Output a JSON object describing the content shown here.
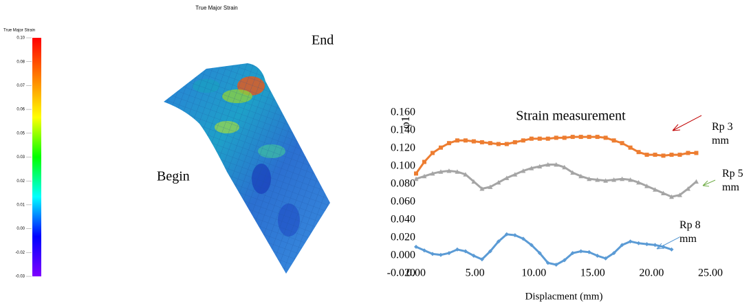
{
  "figure_title": "True Major Strain",
  "labels": {
    "begin": "Begin",
    "end": "End"
  },
  "chart_data": [
    {
      "type": "colorbar",
      "title": "True Major Strain",
      "categories": [
        "0.10",
        "0.08",
        "0.07",
        "0.06",
        "0.05",
        "0.03",
        "0.02",
        "0.01",
        "0.00",
        "-0.02",
        "-0.03"
      ],
      "colors": [
        "#ff0000",
        "#ff8000",
        "#ffff00",
        "#00ff00",
        "#00ffff",
        "#0000ff",
        "#8000ff"
      ]
    },
    {
      "type": "line",
      "title": "Strain measurement",
      "x_label": "Displacment (mm)",
      "y_label": "φ1",
      "xlim": [
        0,
        25
      ],
      "xticks": [
        {
          "value": 0,
          "label": "0.00"
        },
        {
          "value": 5,
          "label": "5.00"
        },
        {
          "value": 10,
          "label": "10.00"
        },
        {
          "value": 15,
          "label": "15.00"
        },
        {
          "value": 20,
          "label": "20.00"
        },
        {
          "value": 25,
          "label": "25.00"
        }
      ],
      "ylim": [
        -0.02,
        0.16
      ],
      "yticks": [
        {
          "value": -0.02,
          "label": "-0.020"
        },
        {
          "value": 0,
          "label": "0.000"
        },
        {
          "value": 0.02,
          "label": "0.020"
        },
        {
          "value": 0.04,
          "label": "0.040"
        },
        {
          "value": 0.06,
          "label": "0.060"
        },
        {
          "value": 0.08,
          "label": "0.080"
        },
        {
          "value": 0.1,
          "label": "0.100"
        },
        {
          "value": 0.12,
          "label": "0.120"
        },
        {
          "value": 0.14,
          "label": "0.140"
        },
        {
          "value": 0.16,
          "label": "0.160"
        }
      ],
      "series": [
        {
          "name": "Rp 3 mm",
          "color": "#ed7d31",
          "marker": "square",
          "x": [
            0,
            0.7,
            1.4,
            2.1,
            2.8,
            3.5,
            4.2,
            4.9,
            5.6,
            6.3,
            7.0,
            7.7,
            8.4,
            9.1,
            9.8,
            10.5,
            11.2,
            11.9,
            12.6,
            13.3,
            14.0,
            14.7,
            15.4,
            16.1,
            16.8,
            17.5,
            18.2,
            18.9,
            19.6,
            20.3,
            21.0,
            21.7,
            22.4,
            23.1,
            23.8
          ],
          "values": [
            0.092,
            0.105,
            0.115,
            0.121,
            0.126,
            0.129,
            0.129,
            0.128,
            0.127,
            0.126,
            0.125,
            0.125,
            0.127,
            0.129,
            0.131,
            0.131,
            0.131,
            0.132,
            0.132,
            0.133,
            0.133,
            0.133,
            0.133,
            0.132,
            0.129,
            0.126,
            0.121,
            0.116,
            0.113,
            0.113,
            0.112,
            0.113,
            0.113,
            0.115,
            0.115
          ]
        },
        {
          "name": "Rp 5 mm",
          "color": "#a5a5a5",
          "marker": "triangle",
          "x": [
            0,
            0.7,
            1.4,
            2.1,
            2.8,
            3.5,
            4.2,
            4.9,
            5.6,
            6.3,
            7.0,
            7.7,
            8.4,
            9.1,
            9.8,
            10.5,
            11.2,
            11.9,
            12.6,
            13.3,
            14.0,
            14.7,
            15.4,
            16.1,
            16.8,
            17.5,
            18.2,
            18.9,
            19.6,
            20.3,
            21.0,
            21.7,
            22.4,
            23.1,
            23.8
          ],
          "values": [
            0.086,
            0.089,
            0.092,
            0.094,
            0.095,
            0.094,
            0.091,
            0.083,
            0.075,
            0.077,
            0.082,
            0.087,
            0.091,
            0.095,
            0.098,
            0.1,
            0.102,
            0.102,
            0.099,
            0.093,
            0.089,
            0.086,
            0.085,
            0.084,
            0.085,
            0.086,
            0.085,
            0.082,
            0.078,
            0.074,
            0.07,
            0.066,
            0.068,
            0.075,
            0.083
          ]
        },
        {
          "name": "Rp 8 mm",
          "color": "#5b9bd5",
          "marker": "diamond",
          "x": [
            0,
            0.7,
            1.4,
            2.1,
            2.8,
            3.5,
            4.2,
            4.9,
            5.6,
            6.3,
            7.0,
            7.7,
            8.4,
            9.1,
            9.8,
            10.5,
            11.2,
            11.9,
            12.6,
            13.3,
            14.0,
            14.7,
            15.4,
            16.1,
            16.8,
            17.5,
            18.2,
            18.9,
            19.6,
            20.3,
            21.0,
            21.7
          ],
          "values": [
            0.01,
            0.006,
            0.002,
            0.001,
            0.003,
            0.007,
            0.005,
            0.0,
            -0.004,
            0.005,
            0.016,
            0.024,
            0.023,
            0.019,
            0.012,
            0.003,
            -0.008,
            -0.01,
            -0.005,
            0.003,
            0.005,
            0.004,
            0.0,
            -0.003,
            0.003,
            0.012,
            0.016,
            0.014,
            0.013,
            0.012,
            0.01,
            0.007
          ]
        }
      ]
    }
  ]
}
